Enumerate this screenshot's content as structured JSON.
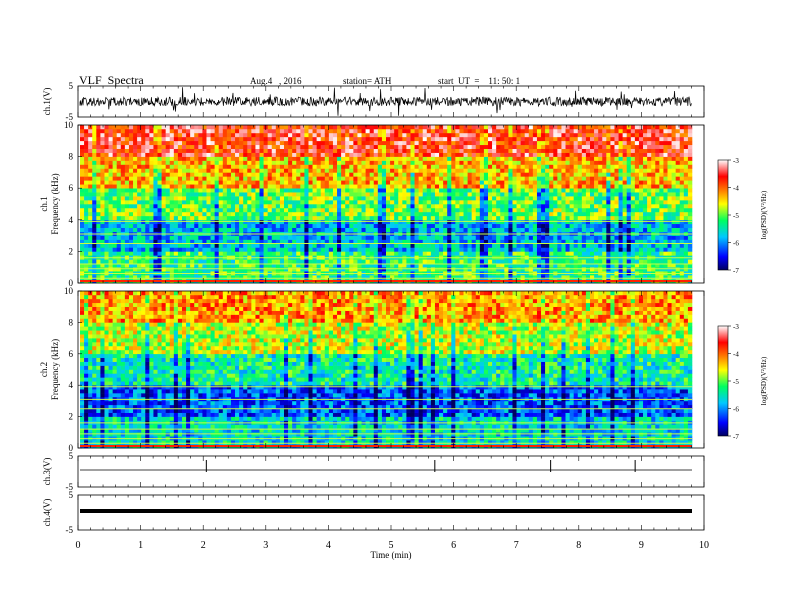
{
  "header": {
    "title": "VLF  Spectra",
    "date": "Aug.4   , 2016",
    "station": "station= ATH",
    "start_ut": "start  UT  =    11: 50: 1"
  },
  "chart_data": [
    {
      "type": "line",
      "name": "ch1-waveform",
      "ylabel": "ch.1(V)",
      "y_ticks": [
        "5",
        "-5"
      ],
      "ylim": [
        -5,
        5
      ],
      "x_range_min": [
        0,
        9.8
      ],
      "trace_color": "#000000"
    },
    {
      "type": "heatmap",
      "name": "ch1-spectrogram",
      "ylabel": "ch.1\nFrequency (kHz)",
      "ylabel_lines": [
        "ch.1",
        "Frequency  (kHz)"
      ],
      "y_ticks": [
        "0",
        "2",
        "4",
        "6",
        "8",
        "10"
      ],
      "ylim_khz": [
        0,
        10
      ],
      "x_range_min": [
        0,
        9.8
      ],
      "colorbar": {
        "label": "log(PSD)(V²/Hz)",
        "ticks": [
          "-3",
          "-4",
          "-5",
          "-6",
          "-7"
        ],
        "range": [
          -7,
          -3
        ],
        "colormap": [
          "#000080",
          "#0000ff",
          "#00ffff",
          "#00ff00",
          "#ffff00",
          "#ff8000",
          "#ff0000",
          "#ffffff"
        ]
      },
      "description_levels": [
        {
          "freq_khz": [
            0,
            2
          ],
          "level": -5.2
        },
        {
          "freq_khz": [
            2,
            4
          ],
          "level": -5.8
        },
        {
          "freq_khz": [
            4,
            6
          ],
          "level": -5.0
        },
        {
          "freq_khz": [
            6,
            8
          ],
          "level": -4.3
        },
        {
          "freq_khz": [
            8,
            10
          ],
          "level": -3.6
        }
      ]
    },
    {
      "type": "heatmap",
      "name": "ch2-spectrogram",
      "ylabel_lines": [
        "ch.2",
        "Frequency  (kHz)"
      ],
      "y_ticks": [
        "0",
        "2",
        "4",
        "6",
        "8",
        "10"
      ],
      "ylim_khz": [
        0,
        10
      ],
      "x_range_min": [
        0,
        9.8
      ],
      "colorbar": {
        "label": "log(PSD)(V²/Hz)",
        "ticks": [
          "-3",
          "-4",
          "-5",
          "-6",
          "-7"
        ],
        "range": [
          -7,
          -3
        ]
      },
      "description_levels": [
        {
          "freq_khz": [
            0,
            2
          ],
          "level": -5.6
        },
        {
          "freq_khz": [
            2,
            4
          ],
          "level": -6.2
        },
        {
          "freq_khz": [
            4,
            6
          ],
          "level": -5.4
        },
        {
          "freq_khz": [
            6,
            8
          ],
          "level": -4.7
        },
        {
          "freq_khz": [
            8,
            10
          ],
          "level": -4.2
        }
      ]
    },
    {
      "type": "line",
      "name": "ch3-waveform",
      "ylabel": "ch.3(V)",
      "y_ticks": [
        "5",
        "-5"
      ],
      "ylim": [
        -5,
        5
      ],
      "x_range_min": [
        0,
        9.8
      ],
      "spikes_min": [
        2.05,
        5.7,
        7.55,
        8.9
      ]
    },
    {
      "type": "line",
      "name": "ch4-waveform",
      "ylabel": "ch.4(V)",
      "y_ticks": [
        "5",
        "-5"
      ],
      "ylim": [
        -5,
        5
      ],
      "x_range_min": [
        0,
        9.8
      ]
    }
  ],
  "xaxis": {
    "label": "Time  (min)",
    "ticks": [
      "0",
      "1",
      "2",
      "3",
      "4",
      "5",
      "6",
      "7",
      "8",
      "9",
      "10"
    ],
    "xlim": [
      0,
      10
    ]
  }
}
